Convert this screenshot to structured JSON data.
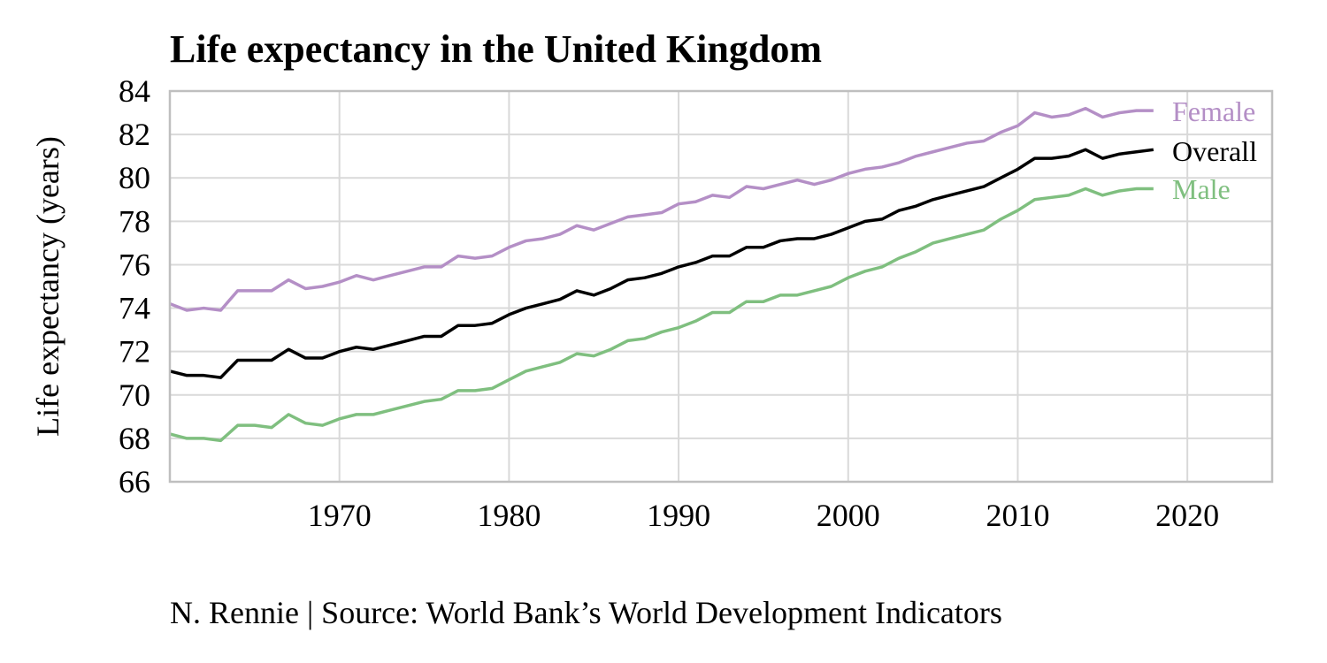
{
  "chart_data": {
    "type": "line",
    "title": "Life expectancy in the United Kingdom",
    "ylabel": "Life expectancy (years)",
    "xlabel": "",
    "xlim": [
      1960,
      2025
    ],
    "ylim": [
      66,
      84
    ],
    "x_ticks": [
      1970,
      1980,
      1990,
      2000,
      2010,
      2020
    ],
    "y_ticks": [
      66,
      68,
      70,
      72,
      74,
      76,
      78,
      80,
      82,
      84
    ],
    "grid": true,
    "legend_placement": "right end of lines",
    "x": [
      1960,
      1961,
      1962,
      1963,
      1964,
      1965,
      1966,
      1967,
      1968,
      1969,
      1970,
      1971,
      1972,
      1973,
      1974,
      1975,
      1976,
      1977,
      1978,
      1979,
      1980,
      1981,
      1982,
      1983,
      1984,
      1985,
      1986,
      1987,
      1988,
      1989,
      1990,
      1991,
      1992,
      1993,
      1994,
      1995,
      1996,
      1997,
      1998,
      1999,
      2000,
      2001,
      2002,
      2003,
      2004,
      2005,
      2006,
      2007,
      2008,
      2009,
      2010,
      2011,
      2012,
      2013,
      2014,
      2015,
      2016,
      2017,
      2018
    ],
    "series": [
      {
        "name": "Female",
        "color": "#b48fc6",
        "values": [
          74.2,
          73.9,
          74.0,
          73.9,
          74.8,
          74.8,
          74.8,
          75.3,
          74.9,
          75.0,
          75.2,
          75.5,
          75.3,
          75.5,
          75.7,
          75.9,
          75.9,
          76.4,
          76.3,
          76.4,
          76.8,
          77.1,
          77.2,
          77.4,
          77.8,
          77.6,
          77.9,
          78.2,
          78.3,
          78.4,
          78.8,
          78.9,
          79.2,
          79.1,
          79.6,
          79.5,
          79.7,
          79.9,
          79.7,
          79.9,
          80.2,
          80.4,
          80.5,
          80.7,
          81.0,
          81.2,
          81.4,
          81.6,
          81.7,
          82.1,
          82.4,
          83.0,
          82.8,
          82.9,
          83.2,
          82.8,
          83.0,
          83.1,
          83.1
        ]
      },
      {
        "name": "Overall",
        "color": "#000000",
        "values": [
          71.1,
          70.9,
          70.9,
          70.8,
          71.6,
          71.6,
          71.6,
          72.1,
          71.7,
          71.7,
          72.0,
          72.2,
          72.1,
          72.3,
          72.5,
          72.7,
          72.7,
          73.2,
          73.2,
          73.3,
          73.7,
          74.0,
          74.2,
          74.4,
          74.8,
          74.6,
          74.9,
          75.3,
          75.4,
          75.6,
          75.9,
          76.1,
          76.4,
          76.4,
          76.8,
          76.8,
          77.1,
          77.2,
          77.2,
          77.4,
          77.7,
          78.0,
          78.1,
          78.5,
          78.7,
          79.0,
          79.2,
          79.4,
          79.6,
          80.0,
          80.4,
          80.9,
          80.9,
          81.0,
          81.3,
          80.9,
          81.1,
          81.2,
          81.3
        ]
      },
      {
        "name": "Male",
        "color": "#7fbf7f",
        "values": [
          68.2,
          68.0,
          68.0,
          67.9,
          68.6,
          68.6,
          68.5,
          69.1,
          68.7,
          68.6,
          68.9,
          69.1,
          69.1,
          69.3,
          69.5,
          69.7,
          69.8,
          70.2,
          70.2,
          70.3,
          70.7,
          71.1,
          71.3,
          71.5,
          71.9,
          71.8,
          72.1,
          72.5,
          72.6,
          72.9,
          73.1,
          73.4,
          73.8,
          73.8,
          74.3,
          74.3,
          74.6,
          74.6,
          74.8,
          75.0,
          75.4,
          75.7,
          75.9,
          76.3,
          76.6,
          77.0,
          77.2,
          77.4,
          77.6,
          78.1,
          78.5,
          79.0,
          79.1,
          79.2,
          79.5,
          79.2,
          79.4,
          79.5,
          79.5
        ]
      }
    ]
  },
  "caption": "N. Rennie | Source: World Bank’s World Development Indicators"
}
